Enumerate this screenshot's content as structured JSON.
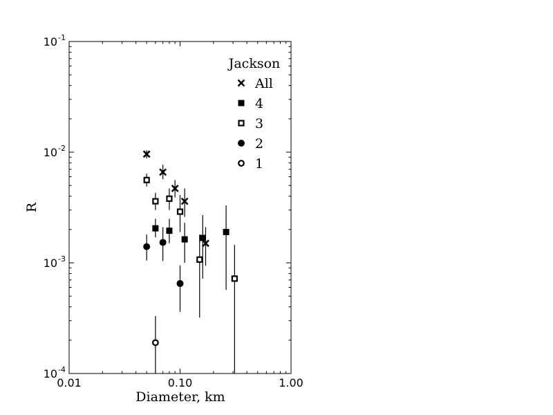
{
  "chart_data": {
    "type": "scatter",
    "title": "",
    "xlabel": "Diameter, km",
    "ylabel": "R",
    "xscale": "log",
    "yscale": "log",
    "xlim": [
      0.01,
      1.0
    ],
    "ylim": [
      0.0001,
      0.1
    ],
    "grid": false,
    "x_ticks": [
      {
        "value": 0.01,
        "label": "0.01"
      },
      {
        "value": 0.1,
        "label": "0.10"
      },
      {
        "value": 1.0,
        "label": "1.00"
      }
    ],
    "y_ticks": [
      {
        "value": 0.1,
        "base": "10",
        "exp": "-1"
      },
      {
        "value": 0.01,
        "base": "10",
        "exp": "-2"
      },
      {
        "value": 0.001,
        "base": "10",
        "exp": "-3"
      },
      {
        "value": 0.0001,
        "base": "10",
        "exp": "-4"
      }
    ],
    "legend": {
      "title": "Jackson",
      "position": "top-right",
      "frame": false
    },
    "series": [
      {
        "name": "All",
        "marker": "x",
        "points": [
          {
            "x": 0.05,
            "y": 0.0096,
            "ylo": 0.0088,
            "yhi": 0.0104
          },
          {
            "x": 0.07,
            "y": 0.0066,
            "ylo": 0.0057,
            "yhi": 0.0077
          },
          {
            "x": 0.09,
            "y": 0.0047,
            "ylo": 0.0039,
            "yhi": 0.0056
          },
          {
            "x": 0.11,
            "y": 0.0036,
            "ylo": 0.0026,
            "yhi": 0.0047
          },
          {
            "x": 0.17,
            "y": 0.0015,
            "ylo": 0.00094,
            "yhi": 0.0021
          }
        ]
      },
      {
        "name": "4",
        "marker": "square-filled",
        "points": [
          {
            "x": 0.06,
            "y": 0.00205,
            "ylo": 0.0017,
            "yhi": 0.0025
          },
          {
            "x": 0.08,
            "y": 0.00195,
            "ylo": 0.0015,
            "yhi": 0.0025
          },
          {
            "x": 0.11,
            "y": 0.00163,
            "ylo": 0.001,
            "yhi": 0.0023
          },
          {
            "x": 0.16,
            "y": 0.00168,
            "ylo": 0.00072,
            "yhi": 0.0027
          },
          {
            "x": 0.26,
            "y": 0.0019,
            "ylo": 0.00057,
            "yhi": 0.0033
          }
        ]
      },
      {
        "name": "3",
        "marker": "square-open",
        "points": [
          {
            "x": 0.05,
            "y": 0.0056,
            "ylo": 0.0049,
            "yhi": 0.0064
          },
          {
            "x": 0.06,
            "y": 0.0036,
            "ylo": 0.003,
            "yhi": 0.0043
          },
          {
            "x": 0.08,
            "y": 0.0038,
            "ylo": 0.003,
            "yhi": 0.0047
          },
          {
            "x": 0.1,
            "y": 0.0029,
            "ylo": 0.0019,
            "yhi": 0.0041
          },
          {
            "x": 0.15,
            "y": 0.00107,
            "ylo": 0.00032,
            "yhi": 0.0018
          },
          {
            "x": 0.31,
            "y": 0.00072,
            "ylo": 0.0001,
            "yhi": 0.00145
          }
        ]
      },
      {
        "name": "2",
        "marker": "circle-filled",
        "points": [
          {
            "x": 0.05,
            "y": 0.0014,
            "ylo": 0.00105,
            "yhi": 0.0018
          },
          {
            "x": 0.07,
            "y": 0.00153,
            "ylo": 0.00104,
            "yhi": 0.0021
          },
          {
            "x": 0.1,
            "y": 0.00065,
            "ylo": 0.00036,
            "yhi": 0.00095
          }
        ]
      },
      {
        "name": "1",
        "marker": "circle-open",
        "points": [
          {
            "x": 0.06,
            "y": 0.00019,
            "ylo": 0.0001,
            "yhi": 0.00033
          }
        ]
      }
    ]
  }
}
